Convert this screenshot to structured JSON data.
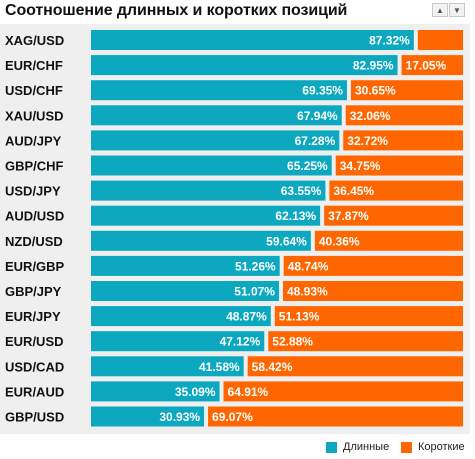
{
  "header": {
    "title": "Соотношение длинных и коротких позиций",
    "up_icon": "triangle-up-icon",
    "down_icon": "triangle-down-icon"
  },
  "colors": {
    "long": "#0ba8c0",
    "short": "#ff6600",
    "panel": "#efefef"
  },
  "legend": {
    "long_label": "Длинные",
    "short_label": "Короткие"
  },
  "chart_data": {
    "type": "bar",
    "orientation": "horizontal",
    "stacked": true,
    "xlim": [
      0,
      100
    ],
    "categories": [
      "XAG/USD",
      "EUR/CHF",
      "USD/CHF",
      "XAU/USD",
      "AUD/JPY",
      "GBP/CHF",
      "USD/JPY",
      "AUD/USD",
      "NZD/USD",
      "EUR/GBP",
      "GBP/JPY",
      "EUR/JPY",
      "EUR/USD",
      "USD/CAD",
      "EUR/AUD",
      "GBP/USD"
    ],
    "series": [
      {
        "name": "Длинные",
        "values": [
          87.32,
          82.95,
          69.35,
          67.94,
          67.28,
          65.25,
          63.55,
          62.13,
          59.64,
          51.26,
          51.07,
          48.87,
          47.12,
          41.58,
          35.09,
          30.93
        ],
        "labels": [
          "87.32%",
          "82.95%",
          "69.35%",
          "67.94%",
          "67.28%",
          "65.25%",
          "63.55%",
          "62.13%",
          "59.64%",
          "51.26%",
          "51.07%",
          "48.87%",
          "47.12%",
          "41.58%",
          "35.09%",
          "30.93%"
        ]
      },
      {
        "name": "Короткие",
        "values": [
          12.68,
          17.05,
          30.65,
          32.06,
          32.72,
          34.75,
          36.45,
          37.87,
          40.36,
          48.74,
          48.93,
          51.13,
          52.88,
          58.42,
          64.91,
          69.07
        ],
        "labels": [
          "",
          "17.05%",
          "30.65%",
          "32.06%",
          "32.72%",
          "34.75%",
          "36.45%",
          "37.87%",
          "40.36%",
          "48.74%",
          "48.93%",
          "51.13%",
          "52.88%",
          "58.42%",
          "64.91%",
          "69.07%"
        ]
      }
    ]
  }
}
